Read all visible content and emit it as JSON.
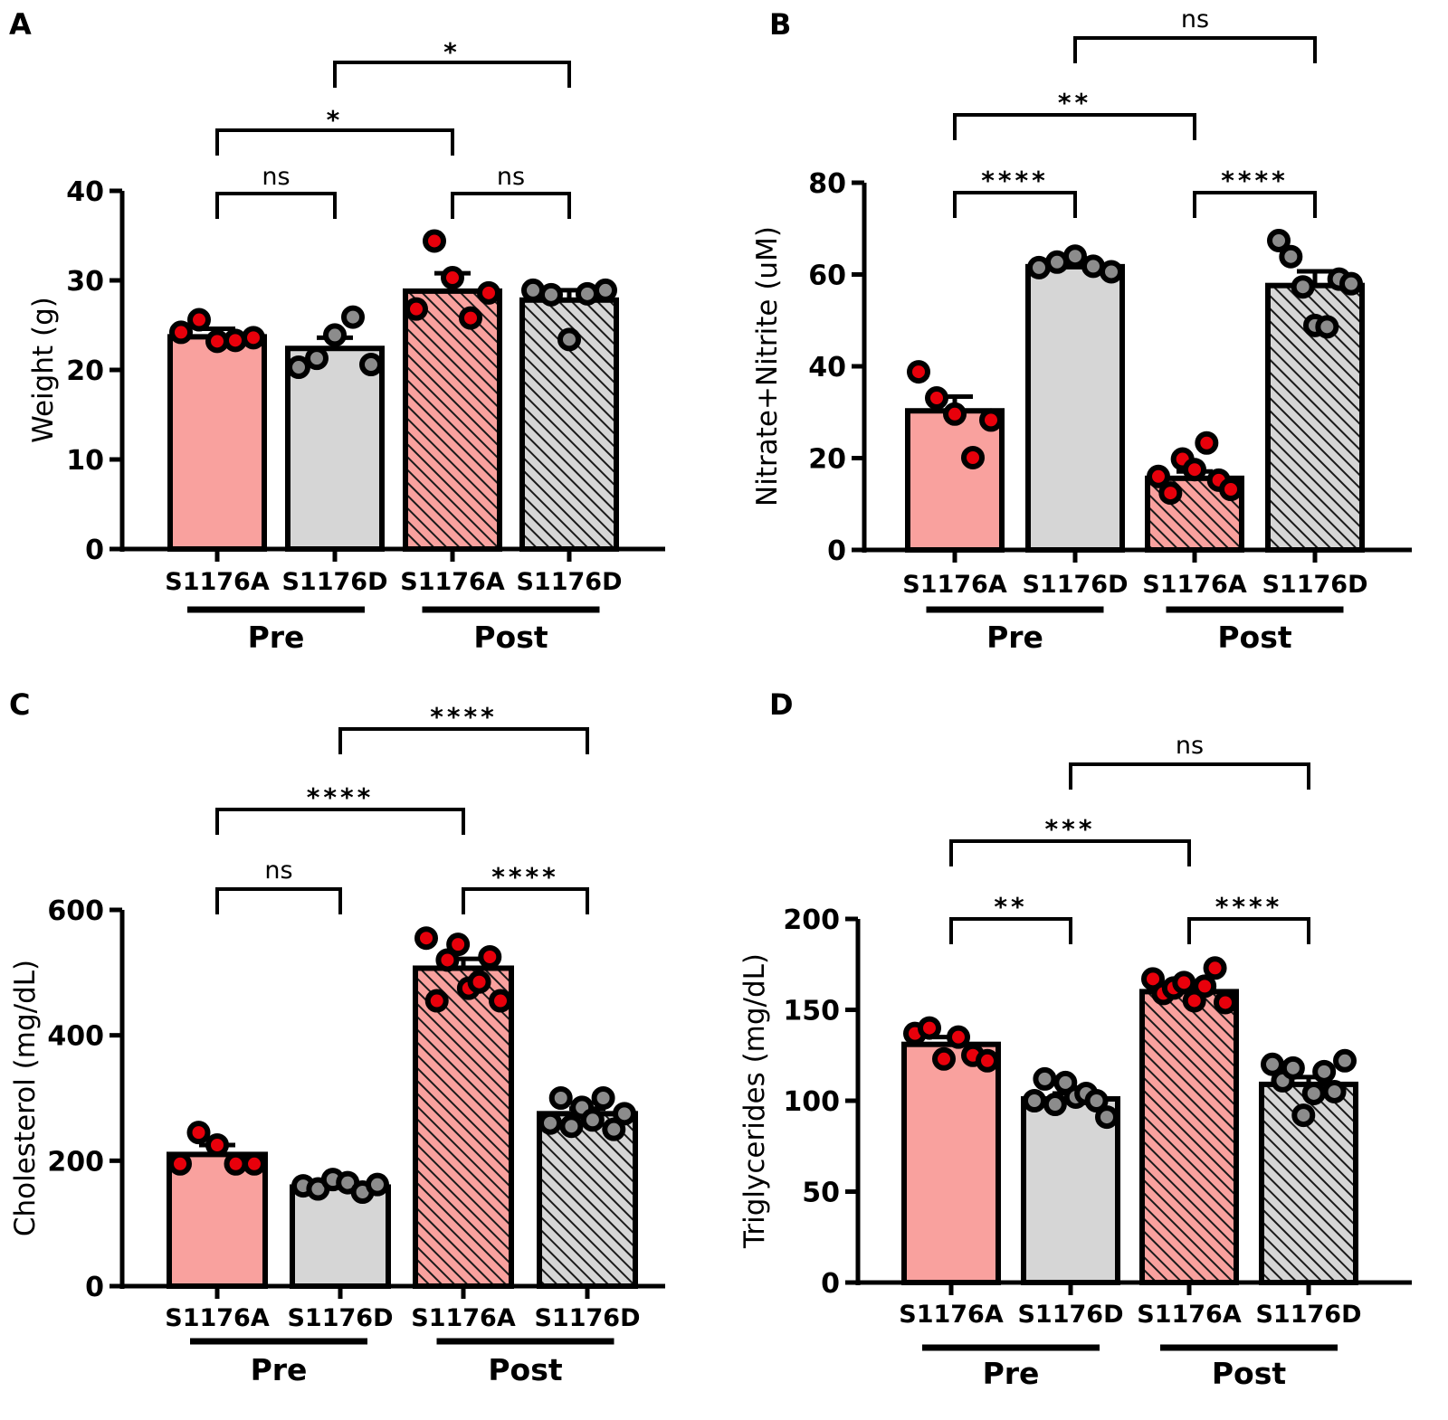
{
  "colors": {
    "pink": "#f9a19e",
    "grey": "#d6d6d6",
    "red_dot": "#e8000b",
    "grey_dot": "#8c8c8c",
    "outline": "#000000"
  },
  "chart_data": [
    {
      "panel": "A",
      "type": "bar",
      "ylabel": "Weight (g)",
      "ylim": [
        0,
        40
      ],
      "yticks": [
        0,
        10,
        20,
        30,
        40
      ],
      "categories": [
        "S1176A",
        "S1176D",
        "S1176A",
        "S1176D"
      ],
      "groups": [
        {
          "label": "Pre",
          "members": [
            0,
            1
          ]
        },
        {
          "label": "Post",
          "members": [
            2,
            3
          ]
        }
      ],
      "series": [
        {
          "category": "S1176A",
          "group": "Pre",
          "fill": "pink",
          "hatched": false,
          "dot": "red",
          "mean": 23.7,
          "sem": 0.9,
          "points": [
            24.2,
            25.6,
            23.2,
            23.3,
            23.6
          ]
        },
        {
          "category": "S1176D",
          "group": "Pre",
          "fill": "grey",
          "hatched": false,
          "dot": "grey",
          "mean": 22.4,
          "sem": 1.2,
          "points": [
            20.3,
            21.3,
            23.9,
            25.9,
            20.6
          ]
        },
        {
          "category": "S1176A",
          "group": "Post",
          "fill": "pink",
          "hatched": true,
          "dot": "red",
          "mean": 28.8,
          "sem": 2.0,
          "points": [
            26.8,
            34.4,
            30.3,
            25.8,
            28.6
          ]
        },
        {
          "category": "S1176D",
          "group": "Post",
          "fill": "grey",
          "hatched": true,
          "dot": "grey",
          "mean": 27.8,
          "sem": 1.1,
          "points": [
            28.9,
            28.4,
            23.4,
            28.5,
            28.9
          ]
        }
      ],
      "comparisons": [
        {
          "from": 0,
          "to": 1,
          "label": "ns",
          "level": 0
        },
        {
          "from": 2,
          "to": 3,
          "label": "ns",
          "level": 0
        },
        {
          "from": 0,
          "to": 2,
          "label": "*",
          "level": 1
        },
        {
          "from": 1,
          "to": 3,
          "label": "*",
          "level": 2
        }
      ]
    },
    {
      "panel": "B",
      "type": "bar",
      "ylabel": "Nitrate+Nitrite (uM)",
      "ylim": [
        0,
        80
      ],
      "yticks": [
        0,
        20,
        40,
        60,
        80
      ],
      "categories": [
        "S1176A",
        "S1176D",
        "S1176A",
        "S1176D"
      ],
      "groups": [
        {
          "label": "Pre",
          "members": [
            0,
            1
          ]
        },
        {
          "label": "Post",
          "members": [
            2,
            3
          ]
        }
      ],
      "series": [
        {
          "category": "S1176A",
          "group": "Pre",
          "fill": "pink",
          "hatched": false,
          "dot": "red",
          "mean": 30.3,
          "sem": 3.1,
          "points": [
            38.8,
            33.1,
            29.6,
            20.1,
            28.3
          ]
        },
        {
          "category": "S1176D",
          "group": "Pre",
          "fill": "grey",
          "hatched": false,
          "dot": "grey",
          "mean": 61.7,
          "sem": 0.7,
          "points": [
            61.5,
            62.7,
            64.0,
            61.8,
            60.6
          ]
        },
        {
          "category": "S1176A",
          "group": "Post",
          "fill": "pink",
          "hatched": true,
          "dot": "red",
          "mean": 15.6,
          "sem": 1.5,
          "points": [
            16.0,
            12.4,
            19.8,
            17.5,
            23.3,
            15.2,
            13.2
          ]
        },
        {
          "category": "S1176D",
          "group": "Post",
          "fill": "grey",
          "hatched": true,
          "dot": "grey",
          "mean": 57.6,
          "sem": 3.1,
          "points": [
            67.4,
            63.9,
            57.3,
            48.9,
            48.6,
            59.0,
            58.0
          ]
        }
      ],
      "comparisons": [
        {
          "from": 0,
          "to": 1,
          "label": "****",
          "level": 0
        },
        {
          "from": 2,
          "to": 3,
          "label": "****",
          "level": 0
        },
        {
          "from": 0,
          "to": 2,
          "label": "**",
          "level": 1
        },
        {
          "from": 1,
          "to": 3,
          "label": "ns",
          "level": 2
        }
      ]
    },
    {
      "panel": "C",
      "type": "bar",
      "ylabel": "Cholesterol (mg/dL)",
      "ylim": [
        0,
        600
      ],
      "yticks": [
        0,
        200,
        400,
        600
      ],
      "categories": [
        "S1176A",
        "S1176D",
        "S1176A",
        "S1176D"
      ],
      "groups": [
        {
          "label": "Pre",
          "members": [
            0,
            1
          ]
        },
        {
          "label": "Post",
          "members": [
            2,
            3
          ]
        }
      ],
      "series": [
        {
          "category": "S1176A",
          "group": "Pre",
          "fill": "pink",
          "hatched": false,
          "dot": "red",
          "mean": 210,
          "sem": 15,
          "points": [
            195,
            245,
            225,
            195,
            195
          ]
        },
        {
          "category": "S1176D",
          "group": "Pre",
          "fill": "grey",
          "hatched": false,
          "dot": "grey",
          "mean": 158,
          "sem": 5,
          "points": [
            160,
            155,
            170,
            165,
            150,
            162
          ]
        },
        {
          "category": "S1176A",
          "group": "Post",
          "fill": "pink",
          "hatched": true,
          "dot": "red",
          "mean": 507,
          "sem": 15,
          "points": [
            555,
            455,
            520,
            545,
            475,
            485,
            525,
            455
          ]
        },
        {
          "category": "S1176D",
          "group": "Post",
          "fill": "grey",
          "hatched": true,
          "dot": "grey",
          "mean": 275,
          "sem": 8,
          "points": [
            260,
            300,
            255,
            285,
            265,
            300,
            250,
            275
          ]
        }
      ],
      "comparisons": [
        {
          "from": 0,
          "to": 1,
          "label": "ns",
          "level": 0
        },
        {
          "from": 2,
          "to": 3,
          "label": "****",
          "level": 0
        },
        {
          "from": 0,
          "to": 2,
          "label": "****",
          "level": 1
        },
        {
          "from": 1,
          "to": 3,
          "label": "****",
          "level": 2
        }
      ]
    },
    {
      "panel": "D",
      "type": "bar",
      "ylabel": "Triglycerides (mg/dL)",
      "ylim": [
        0,
        200
      ],
      "yticks": [
        0,
        50,
        100,
        150,
        200
      ],
      "categories": [
        "S1176A",
        "S1176D",
        "S1176A",
        "S1176D"
      ],
      "groups": [
        {
          "label": "Pre",
          "members": [
            0,
            1
          ]
        },
        {
          "label": "Post",
          "members": [
            2,
            3
          ]
        }
      ],
      "series": [
        {
          "category": "S1176A",
          "group": "Pre",
          "fill": "pink",
          "hatched": false,
          "dot": "red",
          "mean": 131,
          "sem": 4,
          "points": [
            137,
            140,
            123,
            135,
            125,
            122
          ]
        },
        {
          "category": "S1176D",
          "group": "Pre",
          "fill": "grey",
          "hatched": false,
          "dot": "grey",
          "mean": 101,
          "sem": 3,
          "points": [
            100,
            112,
            98,
            110,
            102,
            104,
            100,
            91
          ]
        },
        {
          "category": "S1176A",
          "group": "Post",
          "fill": "pink",
          "hatched": true,
          "dot": "red",
          "mean": 160,
          "sem": 3,
          "points": [
            167,
            159,
            162,
            165,
            155,
            163,
            173,
            154
          ]
        },
        {
          "category": "S1176D",
          "group": "Post",
          "fill": "grey",
          "hatched": true,
          "dot": "grey",
          "mean": 109,
          "sem": 4,
          "points": [
            120,
            111,
            118,
            92,
            104,
            116,
            105,
            122
          ]
        }
      ],
      "comparisons": [
        {
          "from": 0,
          "to": 1,
          "label": "**",
          "level": 0
        },
        {
          "from": 2,
          "to": 3,
          "label": "****",
          "level": 0
        },
        {
          "from": 0,
          "to": 2,
          "label": "***",
          "level": 1
        },
        {
          "from": 1,
          "to": 3,
          "label": "ns",
          "level": 2
        }
      ]
    }
  ]
}
